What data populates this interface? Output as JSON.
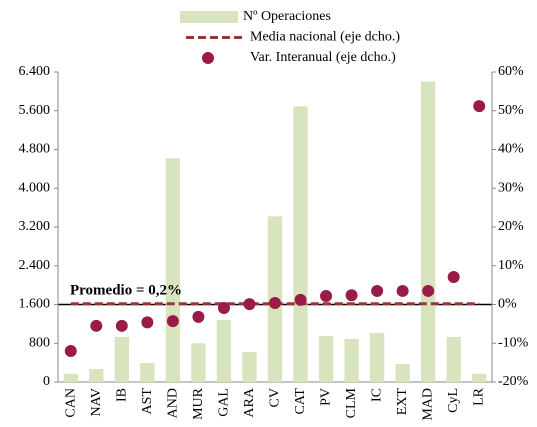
{
  "chart_data": {
    "type": "bar",
    "categories": [
      "CAN",
      "NAV",
      "IB",
      "AST",
      "AND",
      "MUR",
      "GAL",
      "ARA",
      "CV",
      "CAT",
      "PV",
      "CLM",
      "IC",
      "EXT",
      "MAD",
      "CyL",
      "LR"
    ],
    "series": [
      {
        "name": "Nº Operaciones",
        "type": "bar",
        "color": "#d7e4bd",
        "values": [
          170,
          270,
          930,
          390,
          4620,
          800,
          1280,
          620,
          3420,
          5690,
          950,
          890,
          1010,
          370,
          6200,
          930,
          170
        ]
      },
      {
        "name": "Media nacional (eje dcho.)",
        "type": "line",
        "axis": "y2",
        "color": "#953735",
        "values": [
          0.2,
          0.2,
          0.2,
          0.2,
          0.2,
          0.2,
          0.2,
          0.2,
          0.2,
          0.2,
          0.2,
          0.2,
          0.2,
          0.2,
          0.2,
          0.2,
          0.2
        ]
      },
      {
        "name": "Var. Interanual (eje dcho.)",
        "type": "scatter",
        "axis": "y2",
        "color": "#9b1b48",
        "values": [
          -12,
          -5.5,
          -5.5,
          -4.6,
          -4.3,
          -3.2,
          -0.9,
          0.1,
          0.4,
          1.2,
          2.2,
          2.4,
          3.5,
          3.5,
          3.5,
          7.1,
          51.2
        ]
      }
    ],
    "annotation": "Promedio =  0,2%",
    "ylim": [
      0,
      6400
    ],
    "yticks": [
      0,
      800,
      {
        "value": 1600,
        "label": "1.600"
      },
      {
        "value": 2400,
        "label": "2.400"
      },
      {
        "value": 3200,
        "label": "3.200"
      },
      {
        "value": 4000,
        "label": "4.000"
      },
      {
        "value": 4800,
        "label": "4.800"
      },
      {
        "value": 5600,
        "label": "5.600"
      },
      {
        "value": 6400,
        "label": "6.400"
      }
    ],
    "y2lim": [
      -20,
      60
    ],
    "y2ticks": [
      {
        "value": -20,
        "label": "-20%"
      },
      {
        "value": -10,
        "label": "-10%"
      },
      {
        "value": 0,
        "label": "0%"
      },
      {
        "value": 10,
        "label": "10%"
      },
      {
        "value": 20,
        "label": "20%"
      },
      {
        "value": 30,
        "label": "30%"
      },
      {
        "value": 40,
        "label": "40%"
      },
      {
        "value": 50,
        "label": "50%"
      },
      {
        "value": 60,
        "label": "60%"
      }
    ],
    "legend": "top"
  }
}
